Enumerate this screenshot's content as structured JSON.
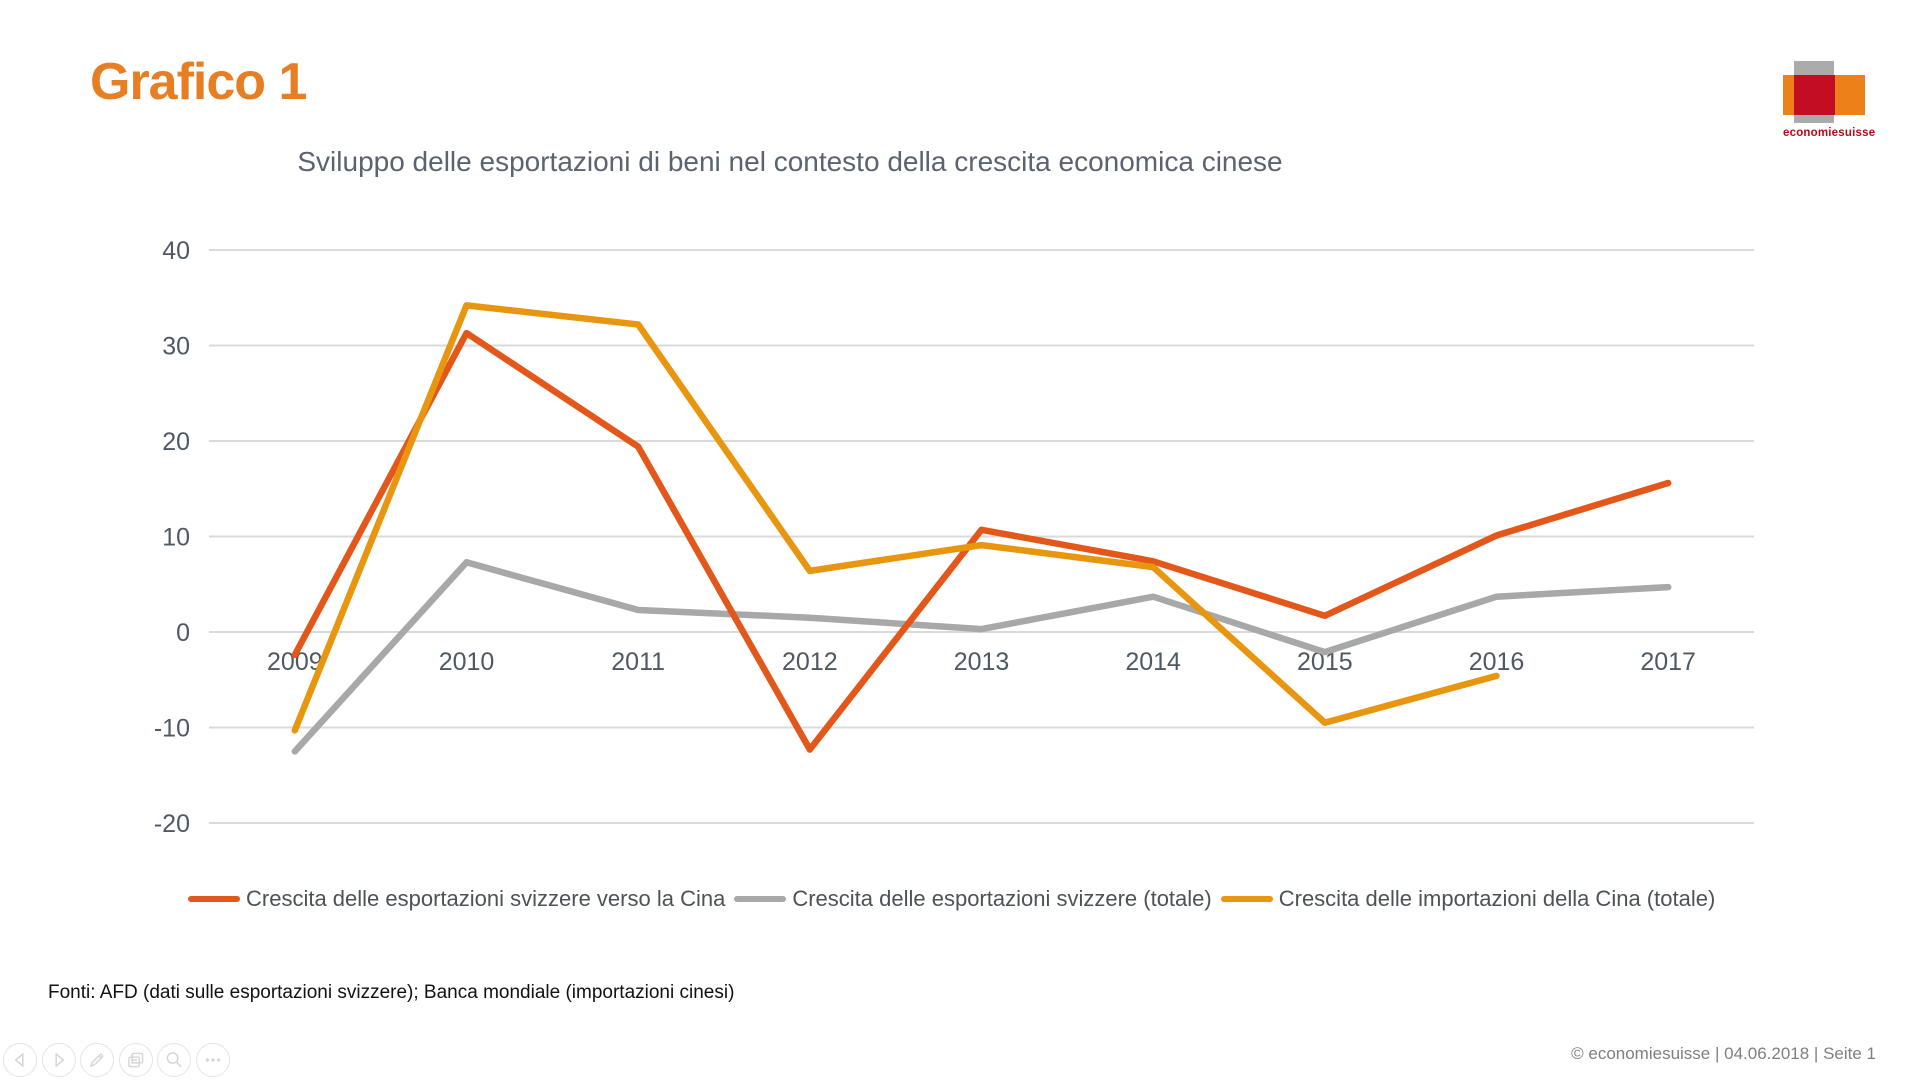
{
  "slide": {
    "heading": "Grafico 1",
    "source_note": "Fonti: AFD (dati sulle esportazioni svizzere); Banca mondiale (importazioni cinesi)",
    "footer": "© economiesuisse | 04.06.2018 | Seite 1"
  },
  "logo": {
    "text": "economiesuisse",
    "orange": "#EE8019",
    "red": "#C30D23",
    "gray": "#ABABAB"
  },
  "toolbar": {
    "items": [
      "previous-slide",
      "next-slide",
      "pen",
      "see-all-slides",
      "zoom",
      "more-options"
    ]
  },
  "chart_data": {
    "type": "line",
    "title": "Sviluppo delle esportazioni di beni nel contesto della crescita economica cinese",
    "categories": [
      "2009",
      "2010",
      "2011",
      "2012",
      "2013",
      "2014",
      "2015",
      "2016",
      "2017"
    ],
    "series": [
      {
        "name": "Crescita delle esportazioni svizzere verso la Cina",
        "color": "#E4571A",
        "values": [
          -2.4,
          31.3,
          19.4,
          -12.3,
          10.7,
          7.4,
          1.7,
          10.1,
          15.6
        ]
      },
      {
        "name": "Crescita delle esportazioni svizzere (totale)",
        "color": "#A8A8A8",
        "values": [
          -12.5,
          7.3,
          2.3,
          1.5,
          0.3,
          3.7,
          -2.1,
          3.7,
          4.7
        ]
      },
      {
        "name": "Crescita delle importazioni della Cina (totale)",
        "color": "#E8950F",
        "values": [
          -10.3,
          34.2,
          32.2,
          6.4,
          9.1,
          6.8,
          -9.5,
          -4.6,
          null
        ]
      }
    ],
    "ylim": [
      -20,
      40
    ],
    "ytick_step": 10,
    "grid": true,
    "legend_position": "bottom",
    "axis_label_color": "#4E5964",
    "gridline_color": "#DADADA"
  }
}
